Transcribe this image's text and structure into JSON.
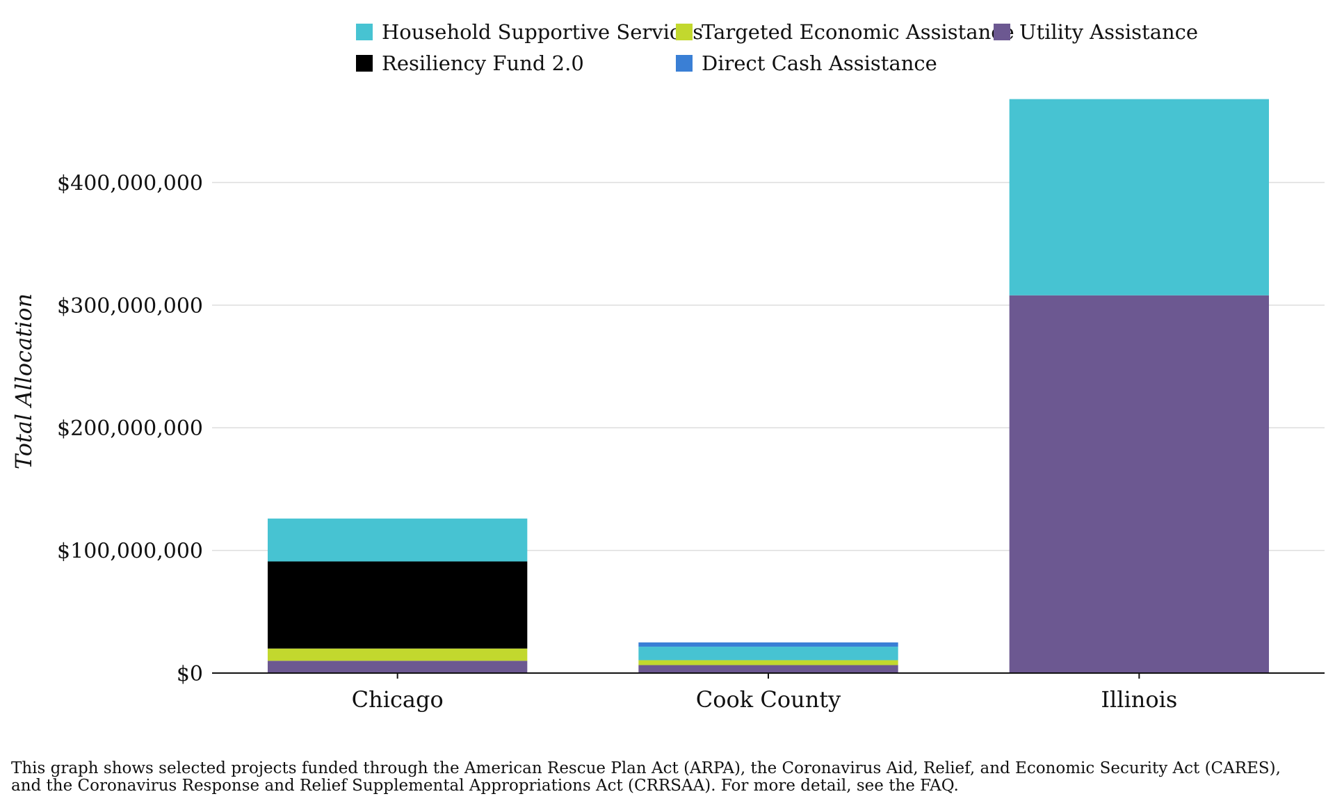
{
  "chart_data": {
    "type": "bar",
    "stacked": true,
    "categories": [
      "Chicago",
      "Cook County",
      "Illinois"
    ],
    "series": [
      {
        "name": "Utility Assistance",
        "color": "#6c5891",
        "values": [
          10000000,
          6500000,
          308000000
        ]
      },
      {
        "name": "Targeted Economic Assistance",
        "color": "#c2d82e",
        "values": [
          10000000,
          4000000,
          0
        ]
      },
      {
        "name": "Resiliency Fund 2.0",
        "color": "#000000",
        "values": [
          71000000,
          0,
          0
        ]
      },
      {
        "name": "Household Supportive Services",
        "color": "#47c3d2",
        "values": [
          35000000,
          11000000,
          160000000
        ]
      },
      {
        "name": "Direct Cash Assistance",
        "color": "#3a7fd5",
        "values": [
          0,
          3500000,
          0
        ]
      }
    ],
    "legend_order": [
      "Household Supportive Services",
      "Targeted Economic Assistance",
      "Utility Assistance",
      "Resiliency Fund 2.0",
      "Direct Cash Assistance"
    ],
    "legend_placement": "top",
    "ylabel": "Total Allocation",
    "xlabel": "",
    "ylim": [
      0,
      470000000
    ],
    "yticks": [
      0,
      100000000,
      200000000,
      300000000,
      400000000
    ],
    "ytick_labels": [
      "$0",
      "$100,000,000",
      "$200,000,000",
      "$300,000,000",
      "$400,000,000"
    ],
    "grid": true
  },
  "footnote": {
    "line1": "This graph shows selected projects funded through the American Rescue Plan Act (ARPA), the Coronavirus Aid, Relief, and Economic Security Act (CARES),",
    "line2": "and the Coronavirus Response and Relief Supplemental Appropriations Act (CRRSAA). For more detail, see the FAQ."
  }
}
